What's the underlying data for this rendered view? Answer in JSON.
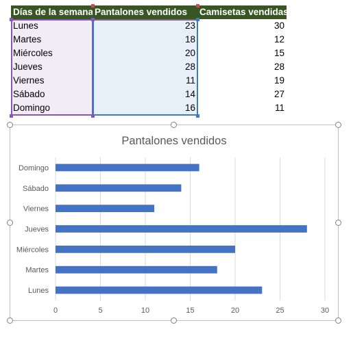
{
  "table": {
    "headers": [
      "Días de la semana",
      "Pantalones vendidos",
      "Camisetas vendidas"
    ],
    "rows": [
      [
        "Lunes",
        "23",
        "30"
      ],
      [
        "Martes",
        "18",
        "12"
      ],
      [
        "Miércoles",
        "20",
        "15"
      ],
      [
        "Jueves",
        "28",
        "28"
      ],
      [
        "Viernes",
        "11",
        "19"
      ],
      [
        "Sábado",
        "14",
        "27"
      ],
      [
        "Domingo",
        "16",
        "11"
      ]
    ]
  },
  "colors": {
    "header_fill": "#375623",
    "bar": "#4472c4",
    "category_range": "#8a55b8",
    "value_range": "#3a7bc4",
    "series_name_range": "#c0504d"
  },
  "chart_data": {
    "type": "bar",
    "orientation": "horizontal",
    "title": "Pantalones vendidos",
    "categories": [
      "Lunes",
      "Martes",
      "Miércoles",
      "Jueves",
      "Viernes",
      "Sábado",
      "Domingo"
    ],
    "values": [
      23,
      18,
      20,
      28,
      11,
      14,
      16
    ],
    "xlim": [
      0,
      30
    ],
    "xticks": [
      0,
      5,
      10,
      15,
      20,
      25,
      30
    ],
    "grid": true,
    "legend": "none",
    "category_order": "first-at-bottom"
  }
}
